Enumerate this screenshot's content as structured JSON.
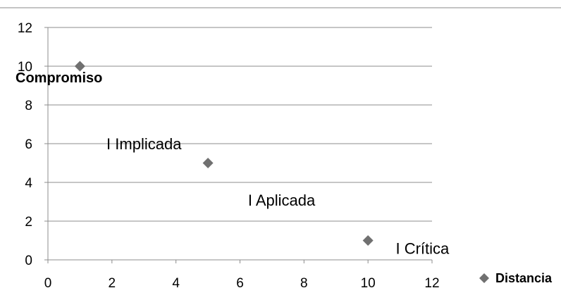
{
  "chart_data": {
    "type": "scatter",
    "title": "",
    "xlabel": "",
    "ylabel": "Compromiso",
    "xlim": [
      0,
      12
    ],
    "ylim": [
      0,
      12
    ],
    "x_ticks": [
      0,
      2,
      4,
      6,
      8,
      10,
      12
    ],
    "y_ticks": [
      0,
      2,
      4,
      6,
      8,
      10,
      12
    ],
    "grid": "horizontal",
    "legend_position": "right",
    "series": [
      {
        "name": "Distancia",
        "color": "#707070",
        "marker": "diamond",
        "points": [
          {
            "x": 1,
            "y": 10
          },
          {
            "x": 5,
            "y": 5
          },
          {
            "x": 10,
            "y": 1
          }
        ]
      }
    ],
    "annotations": [
      {
        "text": "I Implicada",
        "x": 3,
        "y": 6
      },
      {
        "text": "I Aplicada",
        "x": 7.3,
        "y": 3.1
      },
      {
        "text": "I Crítica",
        "x": 11.7,
        "y": 0.6
      }
    ]
  }
}
